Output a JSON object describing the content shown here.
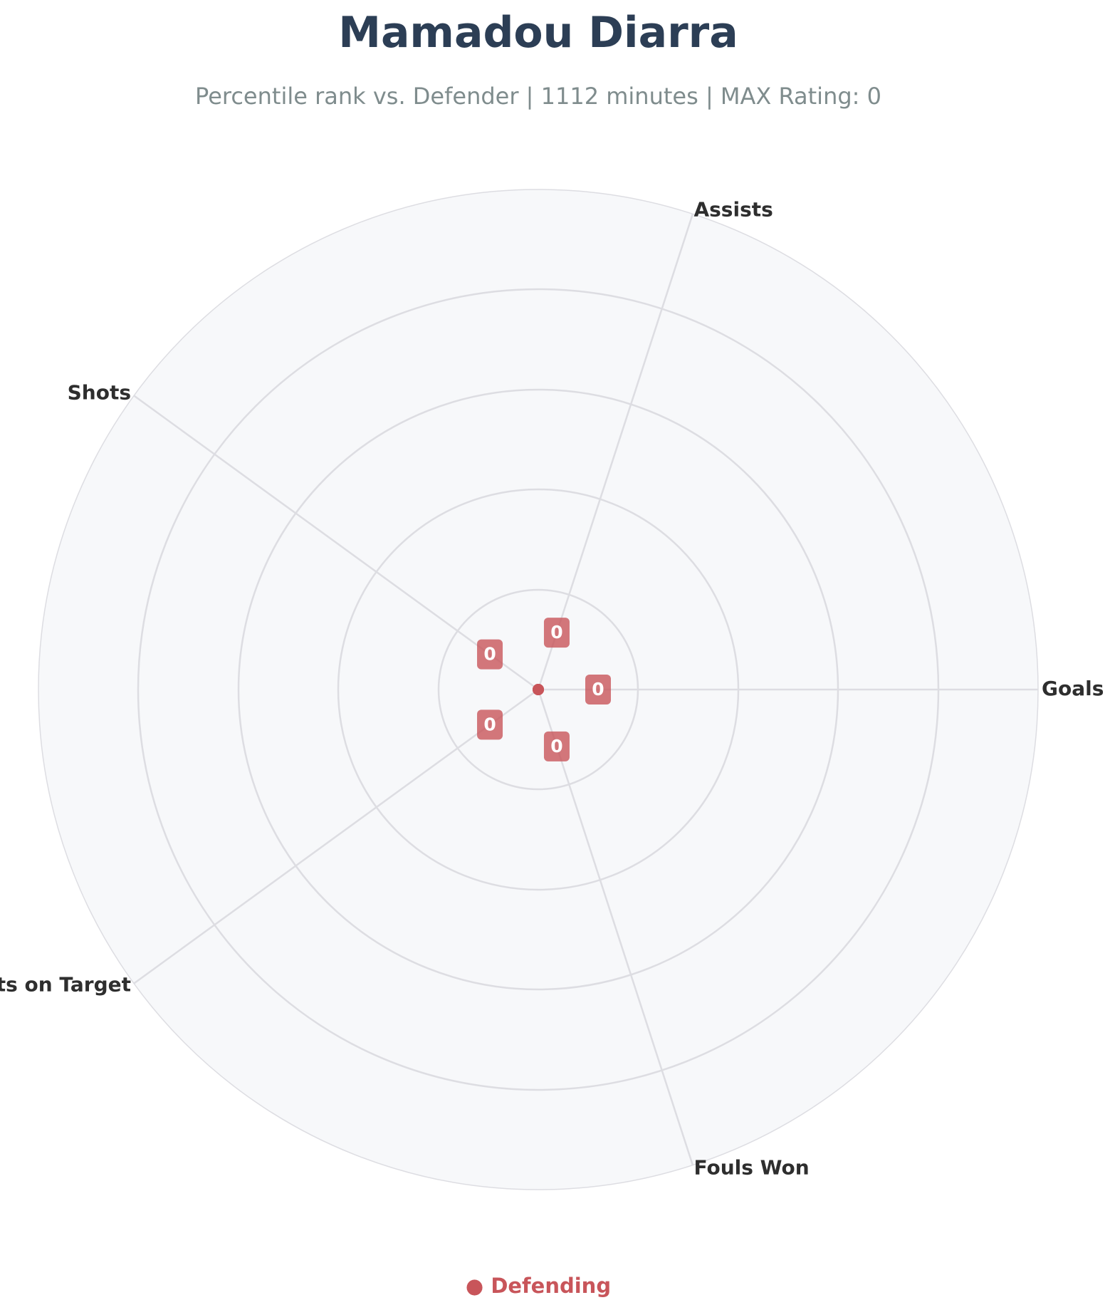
{
  "chart_data": {
    "type": "radar",
    "title": "Mamadou Diarra",
    "subtitle": "Percentile rank vs. Defender | 1112 minutes | MAX Rating: 0",
    "categories": [
      "Goals",
      "Assists",
      "Shots",
      "Shots on Target",
      "Fouls Won"
    ],
    "series": [
      {
        "name": "Defending",
        "values": [
          0,
          0,
          0,
          0,
          0
        ],
        "color": "#c8555a"
      }
    ],
    "value_labels": [
      "0",
      "0",
      "0",
      "0",
      "0"
    ],
    "rlim": [
      0,
      100
    ],
    "grid": true,
    "legend_position": "bottom-center",
    "legend_marker": "●"
  },
  "colors": {
    "title": "#2c3e55",
    "subtitle": "#7f8c8d",
    "axis_text": "#2e2e2e",
    "grid": "#dddde2",
    "plot_background": "#f7f8fa",
    "series": "#c8555a"
  }
}
